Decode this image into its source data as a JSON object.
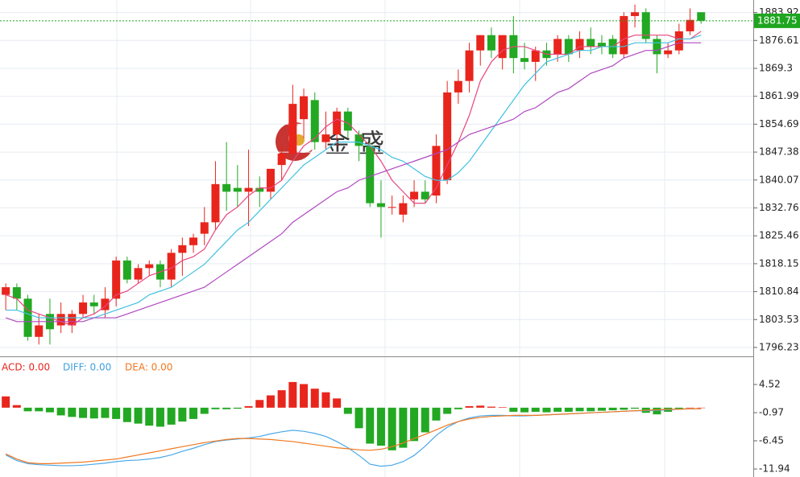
{
  "watermark": "金 盛",
  "chart_data": [
    {
      "type": "candlestick",
      "open": [
        1810,
        1812,
        1809,
        1799,
        1805,
        1802,
        1802,
        1805,
        1808,
        1806,
        1809,
        1819,
        1814,
        1817,
        1818,
        1814,
        1821,
        1823,
        1826,
        1829,
        1839,
        1838,
        1837,
        1838,
        1837,
        1844,
        1847,
        1856,
        1861,
        1850,
        1852,
        1858,
        1852,
        1849,
        1834,
        1833,
        1831,
        1835,
        1837,
        1836,
        1840,
        1863,
        1866,
        1874,
        1878,
        1872,
        1878,
        1872,
        1871,
        1874,
        1873,
        1877,
        1874,
        1877,
        1876,
        1877,
        1873,
        1883,
        1884,
        1877,
        1873,
        1874,
        1879,
        1884
      ],
      "high": [
        1813,
        1813,
        1810,
        1805,
        1809,
        1808,
        1806,
        1810,
        1810,
        1812,
        1820,
        1820,
        1818,
        1819,
        1819,
        1822,
        1825,
        1826,
        1833,
        1845,
        1850,
        1844,
        1848,
        1841,
        1843,
        1849,
        1865,
        1864,
        1863,
        1858,
        1859,
        1859,
        1853,
        1850,
        1840,
        1836,
        1836,
        1840,
        1840,
        1852,
        1866,
        1869,
        1876,
        1878,
        1880,
        1878,
        1883,
        1876,
        1875,
        1876,
        1878,
        1878,
        1879,
        1880,
        1878,
        1878,
        1884,
        1886,
        1885,
        1878,
        1876,
        1881,
        1885,
        1884
      ],
      "low": [
        1806,
        1806,
        1798,
        1797,
        1797,
        1800,
        1800,
        1804,
        1805,
        1804,
        1807,
        1813,
        1813,
        1815,
        1812,
        1812,
        1815,
        1821,
        1823,
        1827,
        1832,
        1833,
        1828,
        1833,
        1835,
        1840,
        1846,
        1851,
        1848,
        1848,
        1849,
        1851,
        1845,
        1833,
        1825,
        1831,
        1829,
        1833,
        1834,
        1834,
        1839,
        1860,
        1863,
        1870,
        1872,
        1869,
        1868,
        1869,
        1866,
        1870,
        1871,
        1871,
        1872,
        1873,
        1873,
        1872,
        1872,
        1880,
        1876,
        1868,
        1872,
        1873,
        1878,
        1881
      ],
      "close": [
        1812,
        1809,
        1799,
        1802,
        1801,
        1805,
        1805,
        1808,
        1807,
        1809,
        1819,
        1814,
        1817,
        1818,
        1814,
        1821,
        1823,
        1825,
        1829,
        1839,
        1837,
        1837,
        1838,
        1837,
        1843,
        1847,
        1860,
        1862,
        1850,
        1852,
        1858,
        1853,
        1849,
        1834,
        1833,
        1833,
        1834,
        1837,
        1835,
        1849,
        1863,
        1866,
        1874,
        1878,
        1874,
        1878,
        1872,
        1871,
        1874,
        1872,
        1877,
        1873,
        1877,
        1875,
        1875,
        1873,
        1883,
        1884,
        1877,
        1873,
        1874,
        1879,
        1882,
        1881.75
      ],
      "up_color": "#e8251c",
      "down_color": "#22a822",
      "series": [
        {
          "color": "#e8457e",
          "values": [
            1810,
            1809,
            1806,
            1805,
            1804,
            1803,
            1802,
            1804,
            1805,
            1807,
            1810,
            1811,
            1813,
            1815,
            1816,
            1817,
            1819,
            1820,
            1822,
            1827,
            1831,
            1833,
            1836,
            1838,
            1838,
            1840,
            1845,
            1849,
            1851,
            1854,
            1856,
            1855,
            1852,
            1849,
            1845,
            1840,
            1837,
            1834,
            1834,
            1838,
            1844,
            1850,
            1857,
            1866,
            1871,
            1874,
            1875,
            1875,
            1874,
            1873,
            1873,
            1873,
            1875,
            1875,
            1875,
            1875,
            1877,
            1878,
            1878,
            1878,
            1878,
            1877,
            1877,
            1879
          ]
        },
        {
          "color": "#3fc0e0",
          "values": [
            1806,
            1806,
            1805,
            1804,
            1804,
            1804,
            1804,
            1804,
            1804,
            1805,
            1806,
            1807,
            1808,
            1810,
            1811,
            1812,
            1814,
            1816,
            1818,
            1821,
            1824,
            1827,
            1829,
            1832,
            1835,
            1838,
            1841,
            1844,
            1846,
            1848,
            1850,
            1850,
            1850,
            1849,
            1848,
            1846,
            1845,
            1843,
            1841,
            1840,
            1840,
            1842,
            1845,
            1849,
            1853,
            1857,
            1861,
            1865,
            1868,
            1871,
            1872,
            1873,
            1874,
            1874,
            1875,
            1875,
            1875,
            1876,
            1876,
            1876,
            1876,
            1877,
            1877,
            1878
          ]
        },
        {
          "color": "#b048c0",
          "values": [
            1804,
            1803,
            1803,
            1803,
            1803,
            1803,
            1803,
            1803,
            1804,
            1804,
            1804,
            1805,
            1806,
            1807,
            1808,
            1809,
            1810,
            1811,
            1812,
            1814,
            1816,
            1818,
            1820,
            1822,
            1824,
            1826,
            1829,
            1831,
            1833,
            1835,
            1837,
            1838,
            1840,
            1841,
            1842,
            1843,
            1844,
            1845,
            1846,
            1847,
            1848,
            1850,
            1852,
            1853,
            1854,
            1855,
            1856,
            1858,
            1859,
            1861,
            1863,
            1864,
            1866,
            1868,
            1869,
            1870,
            1872,
            1873,
            1874,
            1874,
            1875,
            1876,
            1876,
            1876
          ]
        }
      ],
      "current": 1881.75,
      "current_color": "#1fa51f",
      "ylim": [
        1793.9,
        1887.2
      ],
      "yticks": [
        1883.92,
        1876.61,
        1869.3,
        1861.99,
        1854.69,
        1847.38,
        1840.07,
        1832.76,
        1825.46,
        1818.15,
        1810.84,
        1803.53,
        1796.23
      ],
      "grid": true
    },
    {
      "type": "macd",
      "legend": [
        "ACD: 0.00",
        "DIFF: 0.00",
        "DEA: 0.00"
      ],
      "legend_colors": [
        "#e8251c",
        "#3fa0e0",
        "#f07820"
      ],
      "values": [
        2.2,
        0.5,
        -0.7,
        -0.7,
        -0.9,
        -1.5,
        -1.8,
        -2,
        -2.1,
        -2,
        -2.2,
        -2.8,
        -3.1,
        -3.5,
        -3.7,
        -3.3,
        -2.7,
        -2.2,
        -1.2,
        -0.3,
        -0.3,
        -0.2,
        0.3,
        1.5,
        2.4,
        3.4,
        5.0,
        4.6,
        3.7,
        3.0,
        1.8,
        -1.2,
        -4,
        -7,
        -7.4,
        -8.3,
        -7.8,
        -6.5,
        -4.8,
        -2.5,
        -1.2,
        -0.3,
        0.3,
        0.4,
        0.2,
        0.1,
        -0.8,
        -0.9,
        -0.8,
        -0.9,
        -0.8,
        -0.8,
        -0.7,
        -0.7,
        -0.6,
        -0.5,
        -0.4,
        -0.2,
        -1.0,
        -1.3,
        -0.8,
        -0.2,
        0,
        0
      ],
      "up_color": "#e8251c",
      "down_color": "#22a822",
      "series": [
        {
          "color": "#4aa8e8",
          "values": [
            -9.2,
            -10.3,
            -10.9,
            -11.1,
            -11.2,
            -11.3,
            -11.3,
            -11.2,
            -11.0,
            -10.8,
            -10.5,
            -10.3,
            -10.2,
            -10.0,
            -9.7,
            -9.2,
            -8.5,
            -7.9,
            -7.2,
            -6.6,
            -6.3,
            -6.1,
            -5.9,
            -5.6,
            -5.1,
            -4.7,
            -4.4,
            -4.6,
            -5.0,
            -5.6,
            -6.6,
            -7.8,
            -9.3,
            -11.0,
            -11.4,
            -11.2,
            -10.5,
            -9.3,
            -7.5,
            -5.4,
            -3.8,
            -2.7,
            -2.0,
            -1.6,
            -1.5,
            -1.5,
            -1.6,
            -1.6,
            -1.5,
            -1.4,
            -1.3,
            -1.2,
            -1.1,
            -1.0,
            -0.9,
            -0.8,
            -0.7,
            -0.6,
            -0.6,
            -0.5,
            -0.4,
            -0.3,
            -0.2,
            -0.2
          ]
        },
        {
          "color": "#f07820",
          "values": [
            -9.0,
            -10.0,
            -10.7,
            -10.9,
            -10.9,
            -10.8,
            -10.7,
            -10.6,
            -10.4,
            -10.2,
            -10.0,
            -9.6,
            -9.2,
            -8.8,
            -8.4,
            -8.0,
            -7.6,
            -7.2,
            -6.8,
            -6.5,
            -6.2,
            -6.0,
            -6.0,
            -6.1,
            -6.2,
            -6.4,
            -6.6,
            -6.9,
            -7.2,
            -7.5,
            -7.8,
            -8.0,
            -8.2,
            -8.3,
            -8.1,
            -7.6,
            -6.9,
            -6.0,
            -5.2,
            -4.3,
            -3.4,
            -2.7,
            -2.2,
            -1.9,
            -1.7,
            -1.6,
            -1.5,
            -1.5,
            -1.5,
            -1.4,
            -1.3,
            -1.2,
            -1.1,
            -1.0,
            -0.9,
            -0.8,
            -0.7,
            -0.6,
            -0.5,
            -0.4,
            -0.3,
            -0.3,
            -0.2,
            -0.2
          ]
        }
      ],
      "ylim": [
        -13.5,
        10.0
      ],
      "yticks": [
        4.52,
        -0.97,
        -6.45,
        -11.94
      ]
    }
  ]
}
